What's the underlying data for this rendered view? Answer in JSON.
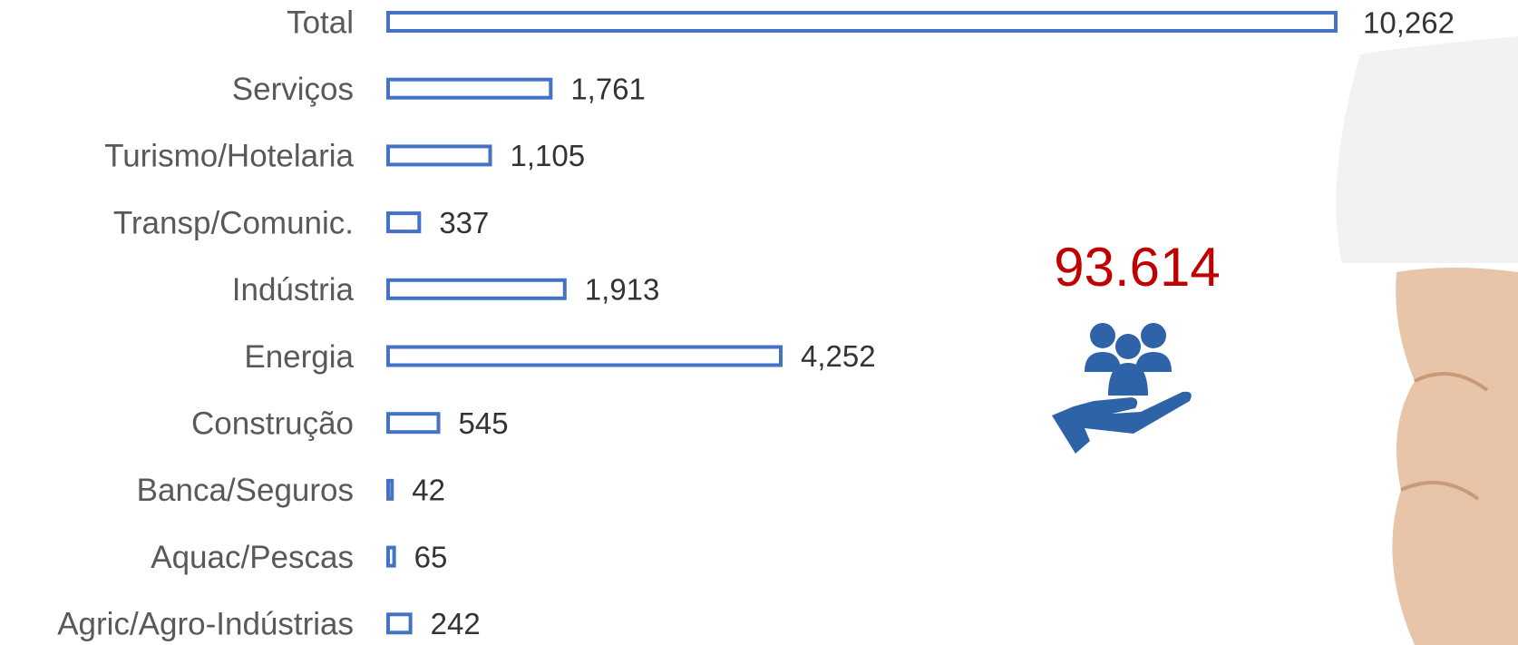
{
  "chart_data": {
    "type": "bar",
    "orientation": "horizontal",
    "categories": [
      "Total",
      "Serviços",
      "Turismo/Hotelaria",
      "Transp/Comunic.",
      "Indústria",
      "Energia",
      "Construção",
      "Banca/Seguros",
      "Aquac/Pescas",
      "Agric/Agro-Indústrias"
    ],
    "values": [
      10262,
      1761,
      1105,
      337,
      1913,
      4252,
      545,
      42,
      65,
      242
    ],
    "value_labels": [
      "10,262",
      "1,761",
      "1,105",
      "337",
      "1,913",
      "4,252",
      "545",
      "42",
      "65",
      "242"
    ],
    "color": "#4472c4",
    "annotation": "93.614"
  }
}
